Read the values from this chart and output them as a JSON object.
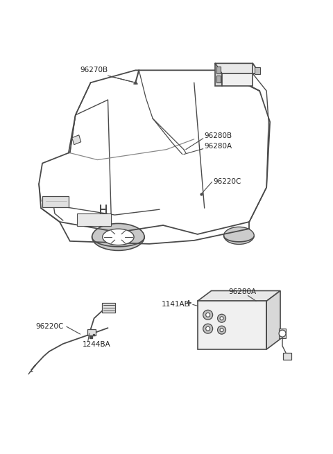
{
  "bg_color": "#ffffff",
  "line_color": "#4a4a4a",
  "text_color": "#222222",
  "fig_width": 4.8,
  "fig_height": 6.55,
  "dpi": 100,
  "car_color": "#555555",
  "label_96270B": "96270B",
  "label_96280B": "96280B",
  "label_96280A": "96280A",
  "label_96220C": "96220C",
  "label_1244BA": "1244BA",
  "label_1141AE": "1141AE"
}
